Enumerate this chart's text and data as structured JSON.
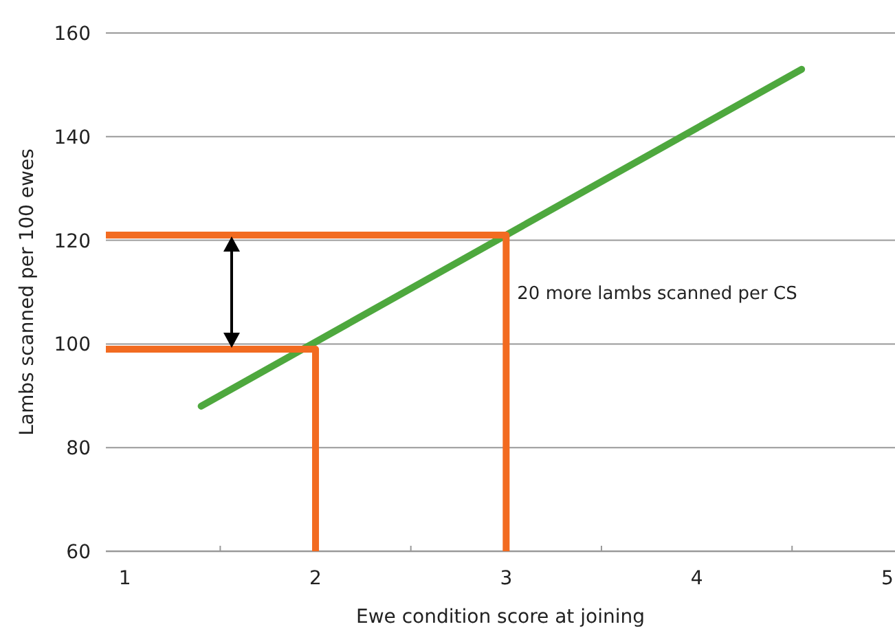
{
  "chart_data": {
    "type": "line",
    "xlabel": "Ewe condition score at joining",
    "ylabel": "Lambs scanned per 100 ewes",
    "xlim": [
      0.9,
      5.04
    ],
    "xticks": [
      1,
      {
        "value": 1.5,
        "label": null
      },
      2,
      {
        "value": 2.5,
        "label": null
      },
      3,
      {
        "value": 3.5,
        "label": null
      },
      4,
      {
        "value": 4.5,
        "label": null
      },
      5
    ],
    "ylim": [
      60,
      160
    ],
    "yticks": [
      60,
      80,
      100,
      120,
      140,
      160
    ],
    "grid": "y",
    "line_style": "solid",
    "marker": "none",
    "series": [
      {
        "color": "#4ea83e",
        "x": [
          1.4,
          4.55
        ],
        "values": [
          88,
          153
        ]
      },
      {
        "color": "#f26b21",
        "x": [
          0.9,
          2,
          2
        ],
        "values": [
          99,
          99,
          60
        ]
      },
      {
        "color": "#f26b21",
        "x": [
          0.9,
          3,
          3
        ],
        "values": [
          121,
          121,
          60
        ]
      }
    ],
    "annotations": [
      "20 more lambs scanned per CS"
    ]
  }
}
